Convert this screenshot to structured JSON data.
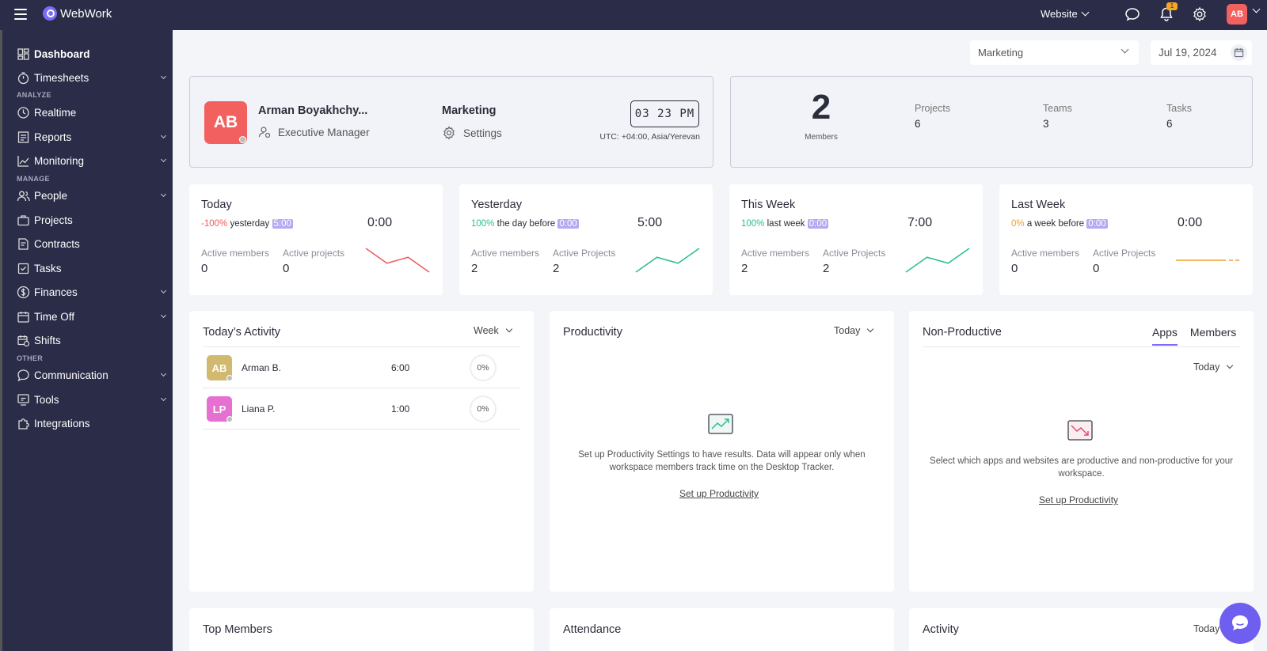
{
  "app": {
    "name": "WebWork"
  },
  "topbar": {
    "workspace_select": "Website",
    "notification_count": "1",
    "user_initials": "AB"
  },
  "sidebar": {
    "items": [
      {
        "label": "Dashboard"
      },
      {
        "label": "Timesheets"
      },
      {
        "label": "Realtime"
      },
      {
        "label": "Reports"
      },
      {
        "label": "Monitoring"
      },
      {
        "label": "People"
      },
      {
        "label": "Projects"
      },
      {
        "label": "Contracts"
      },
      {
        "label": "Tasks"
      },
      {
        "label": "Finances"
      },
      {
        "label": "Time Off"
      },
      {
        "label": "Shifts"
      },
      {
        "label": "Communication"
      },
      {
        "label": "Tools"
      },
      {
        "label": "Integrations"
      }
    ],
    "sections": {
      "analyze": "ANALYZE",
      "manage": "MANAGE",
      "other": "OTHER"
    }
  },
  "filters": {
    "team": "Marketing",
    "date": "Jul 19, 2024"
  },
  "profile": {
    "initials": "AB",
    "name": "Arman Boyakhchy...",
    "role": "Executive Manager",
    "team": "Marketing",
    "settings_label": "Settings",
    "clock": "03 23 PM",
    "timezone": "UTC: +04:00, Asia/Yerevan"
  },
  "summary": {
    "members_count": "2",
    "members_label": "Members",
    "stats": [
      {
        "label": "Projects",
        "value": "6"
      },
      {
        "label": "Teams",
        "value": "3"
      },
      {
        "label": "Tasks",
        "value": "6"
      }
    ]
  },
  "periods": [
    {
      "title": "Today",
      "pct": "-100%",
      "cmp_text": "yesterday",
      "tag": "5:00",
      "time": "0:00",
      "members_label": "Active members",
      "projects_label": "Active projects",
      "members": "0",
      "projects": "0",
      "trend": [
        8,
        3,
        5,
        0
      ],
      "trend_color": "#f05a5a"
    },
    {
      "title": "Yesterday",
      "pct": "100%",
      "cmp_text": "the day before",
      "tag": "0:00",
      "time": "5:00",
      "members_label": "Active members",
      "projects_label": "Active Projects",
      "members": "2",
      "projects": "2",
      "trend": [
        0,
        5,
        3,
        8
      ],
      "trend_color": "#2bbf8a"
    },
    {
      "title": "This Week",
      "pct": "100%",
      "cmp_text": "last week",
      "tag": "0:00",
      "time": "7:00",
      "members_label": "Active members",
      "projects_label": "Active Projects",
      "members": "2",
      "projects": "2",
      "trend": [
        0,
        5,
        3,
        8
      ],
      "trend_color": "#2bbf8a"
    },
    {
      "title": "Last Week",
      "pct": "0%",
      "cmp_text": "a week before",
      "tag": "0:00",
      "time": "0:00",
      "members_label": "Active members",
      "projects_label": "Active Projects",
      "members": "0",
      "projects": "0",
      "trend": [
        4,
        4,
        4,
        4
      ],
      "trend_color": "#f0a030"
    }
  ],
  "activity": {
    "title": "Today’s Activity",
    "range": "Week",
    "rows": [
      {
        "initials": "AB",
        "name": "Arman B.",
        "time": "6:00",
        "pct": "0%",
        "color": "#d1b96f"
      },
      {
        "initials": "LP",
        "name": "Liana P.",
        "time": "1:00",
        "pct": "0%",
        "color": "#e66fd2"
      }
    ]
  },
  "productivity": {
    "title": "Productivity",
    "range": "Today",
    "message_line1": "Set up Productivity Settings to have results. Data will appear only when",
    "message_line2": "workspace members track time on the Desktop Tracker.",
    "link": "Set up Productivity"
  },
  "nonproductive": {
    "title": "Non-Productive",
    "tabs": [
      "Apps",
      "Members"
    ],
    "range": "Today",
    "message_line1": "Select which apps and websites are productive and non-productive for your",
    "message_line2": "workspace.",
    "link": "Set up Productivity"
  },
  "bottom": {
    "top_members": "Top Members",
    "attendance": "Attendance",
    "activity": "Activity",
    "activity_range": "Today"
  },
  "colors": {
    "sidebar": "#2a2c48",
    "accent": "#7b6cf6",
    "danger": "#f05a5a",
    "success": "#2bbf8a"
  }
}
